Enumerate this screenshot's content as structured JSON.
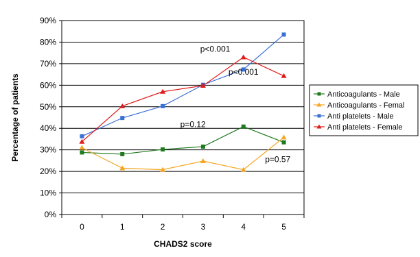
{
  "chart_data": {
    "type": "line",
    "xlabel": "CHADS2 score",
    "ylabel": "Percentage of patients",
    "x": [
      0,
      1,
      2,
      3,
      4,
      5
    ],
    "xlim": [
      -0.5,
      5.5
    ],
    "ylim": [
      0,
      90
    ],
    "y_ticks": [
      "0%",
      "10%",
      "20%",
      "30%",
      "40%",
      "50%",
      "60%",
      "70%",
      "80%",
      "90%"
    ],
    "grid": true,
    "legend_position": "right",
    "series": [
      {
        "name": "Anticoagulants - Male",
        "color": "#1e7a1e",
        "marker": "square",
        "values": [
          28.8,
          28.0,
          30.2,
          31.5,
          40.8,
          33.5
        ]
      },
      {
        "name": "Anticoagulants - Femal",
        "color": "#f5a623",
        "marker": "triangle",
        "values": [
          31.0,
          21.5,
          20.8,
          24.8,
          20.8,
          35.8
        ]
      },
      {
        "name": "Anti platelets - Male",
        "color": "#3a6fd6",
        "marker": "square",
        "values": [
          36.3,
          44.8,
          50.3,
          60.2,
          67.3,
          83.5
        ]
      },
      {
        "name": "Anti platelets - Female",
        "color": "#e01b1b",
        "marker": "triangle",
        "values": [
          33.8,
          50.3,
          57.0,
          59.8,
          73.0,
          64.3
        ]
      }
    ],
    "annotations": [
      {
        "text": "p<0.001",
        "x": 3.3,
        "y": 75.5
      },
      {
        "text": "p<0.001",
        "x": 4.0,
        "y": 64.8
      },
      {
        "text": "p=0.12",
        "x": 2.75,
        "y": 40.6
      },
      {
        "text": "p=0.57",
        "x": 4.85,
        "y": 24.3
      }
    ]
  }
}
